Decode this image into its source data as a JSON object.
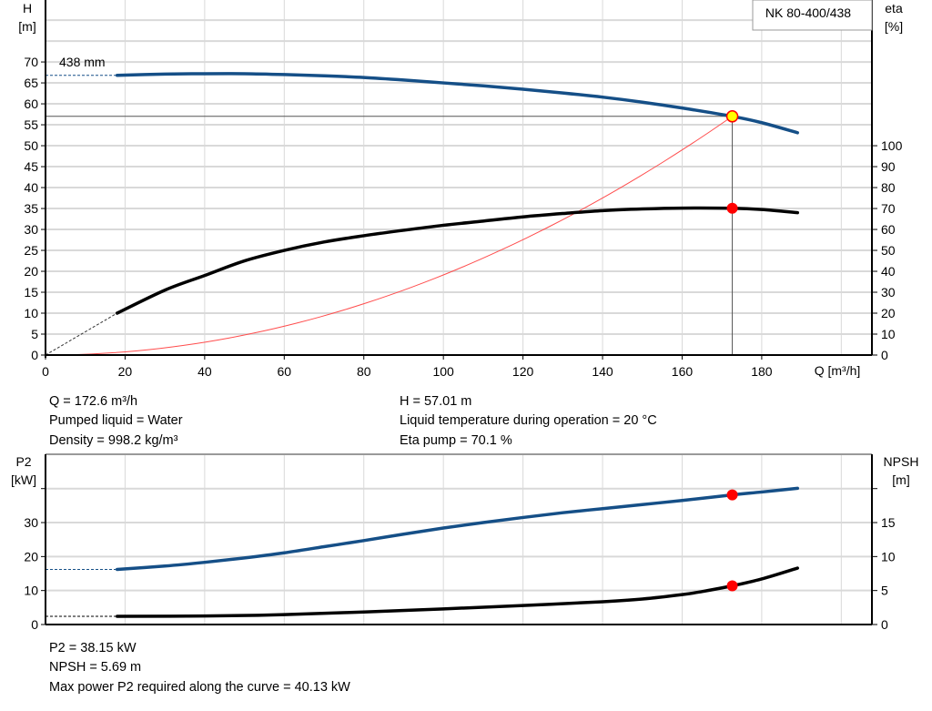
{
  "pump_label": "NK 80-400/438",
  "impeller_label": "438 mm",
  "colors": {
    "head": "#154f87",
    "eta": "#000000",
    "system": "#ff4d4d",
    "p2": "#154f87",
    "npsh": "#000000",
    "duty_point": "#ff0000",
    "duty_point_head_fill": "#ffff00",
    "grid": "#d9d9d9"
  },
  "chart_data": [
    {
      "type": "line",
      "x_label": "Q [m³/h]",
      "xlim": [
        0,
        207.7
      ],
      "x_ticks": [
        "0",
        "20",
        "40",
        "60",
        "80",
        "100",
        "120",
        "140",
        "160",
        "180"
      ],
      "y_left": {
        "label_line1": "H",
        "label_line2": "[m]",
        "lim": [
          0,
          84.8
        ],
        "ticks": [
          "0",
          "5",
          "10",
          "15",
          "20",
          "25",
          "30",
          "35",
          "40",
          "45",
          "50",
          "55",
          "60",
          "65",
          "70"
        ]
      },
      "y_right": {
        "label_line1": "eta",
        "label_line2": "[%]",
        "lim": [
          0,
          169.6
        ],
        "ticks": [
          "0",
          "10",
          "20",
          "30",
          "40",
          "50",
          "60",
          "70",
          "80",
          "90",
          "100"
        ]
      },
      "grid": true,
      "series": [
        {
          "key": "head",
          "axis": "left",
          "x": [
            18,
            30,
            40,
            50,
            60,
            70,
            80,
            90,
            100,
            110,
            120,
            130,
            140,
            150,
            160,
            172.6,
            180,
            189
          ],
          "y": [
            66.8,
            67.1,
            67.2,
            67.2,
            67.0,
            66.7,
            66.3,
            65.7,
            65.0,
            64.3,
            63.5,
            62.6,
            61.6,
            60.4,
            59.0,
            57.01,
            55.5,
            53.1
          ],
          "extrapolated_to": 0
        },
        {
          "key": "eta",
          "axis": "right",
          "x": [
            18,
            30,
            40,
            50,
            60,
            70,
            80,
            90,
            100,
            110,
            120,
            130,
            140,
            150,
            160,
            172.6,
            180,
            189
          ],
          "y": [
            20,
            31,
            38,
            45,
            50,
            54,
            57,
            59.6,
            62,
            64,
            66,
            67.6,
            69,
            69.8,
            70.2,
            70.1,
            69.5,
            68
          ],
          "extrapolated_to": 0
        },
        {
          "key": "system",
          "axis": "left",
          "type": "parabola",
          "x_end": 172.6,
          "y_end": 57.01
        }
      ],
      "duty_point": {
        "q": 172.6,
        "h": 57.01,
        "eta": 70.1
      }
    },
    {
      "type": "line",
      "xlim": [
        0,
        207.7
      ],
      "y_left": {
        "label_line1": "P2",
        "label_line2": "[kW]",
        "lim": [
          0,
          50.1
        ],
        "ticks": [
          "0",
          "10",
          "20",
          "30"
        ]
      },
      "y_right": {
        "label_line1": "NPSH",
        "label_line2": "[m]",
        "lim": [
          0,
          25.05
        ],
        "ticks": [
          "0",
          "5",
          "10",
          "15"
        ]
      },
      "grid": true,
      "series": [
        {
          "key": "p2",
          "axis": "left",
          "x": [
            18,
            30,
            40,
            50,
            60,
            70,
            80,
            90,
            100,
            110,
            120,
            130,
            140,
            150,
            160,
            172.6,
            180,
            189
          ],
          "y": [
            16.2,
            17.2,
            18.3,
            19.6,
            21.1,
            22.9,
            24.7,
            26.6,
            28.4,
            30.0,
            31.5,
            32.9,
            34.1,
            35.3,
            36.5,
            38.15,
            39.0,
            40.1
          ],
          "extrapolated_to": 0
        },
        {
          "key": "npsh",
          "axis": "right",
          "x": [
            18,
            40,
            60,
            80,
            100,
            120,
            140,
            150,
            160,
            165,
            172.6,
            180,
            189
          ],
          "y": [
            1.2,
            1.25,
            1.45,
            1.85,
            2.3,
            2.8,
            3.35,
            3.75,
            4.4,
            4.85,
            5.69,
            6.7,
            8.3
          ],
          "extrapolated_to": 0
        }
      ],
      "duty_point": {
        "q": 172.6,
        "p2": 38.15,
        "npsh": 5.69
      }
    }
  ],
  "info_top": {
    "q": "Q = 172.6 m³/h",
    "liquid": "Pumped liquid = Water",
    "density": "Density = 998.2 kg/m³",
    "h": "H = 57.01 m",
    "temperature": "Liquid temperature during operation = 20 °C",
    "eta": "Eta pump = 70.1 %"
  },
  "info_bottom": {
    "p2": "P2 = 38.15 kW",
    "npsh": "NPSH = 5.69 m",
    "max_power": "Max power P2 required along the curve = 40.13 kW"
  }
}
